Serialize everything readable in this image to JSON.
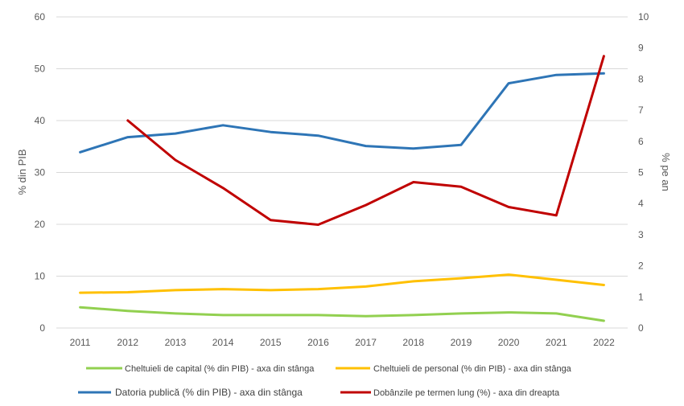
{
  "chart_data": {
    "type": "line",
    "title": "",
    "categories": [
      "2011",
      "2012",
      "2013",
      "2014",
      "2015",
      "2016",
      "2017",
      "2018",
      "2019",
      "2020",
      "2021",
      "2022"
    ],
    "y_left": {
      "label": "% din PIB",
      "min": 0,
      "max": 60,
      "ticks": [
        "0",
        "10",
        "20",
        "30",
        "40",
        "50",
        "60"
      ]
    },
    "y_right": {
      "label": "% pe an",
      "min": 0,
      "max": 10,
      "ticks": [
        "0",
        "1",
        "2",
        "3",
        "4",
        "5",
        "6",
        "7",
        "8",
        "9",
        "10"
      ]
    },
    "grid": "horizontal",
    "legend_position": "bottom",
    "series": [
      {
        "name": "Cheltuieli de capital (% din PIB) - axa din stânga",
        "axis": "left",
        "color": "#92D050",
        "values": [
          4.0,
          3.3,
          2.8,
          2.5,
          2.5,
          2.5,
          2.3,
          2.5,
          2.8,
          3.0,
          2.8,
          1.4
        ]
      },
      {
        "name": "Cheltuieli de personal (% din PIB) - axa din stânga",
        "axis": "left",
        "color": "#FFC000",
        "values": [
          6.8,
          6.9,
          7.3,
          7.5,
          7.3,
          7.5,
          8.0,
          9.0,
          9.6,
          10.3,
          9.3,
          8.3
        ]
      },
      {
        "name": "Datoria publică (% din PIB) - axa din stânga",
        "axis": "left",
        "color": "#2E75B6",
        "values": [
          33.9,
          36.8,
          37.5,
          39.1,
          37.8,
          37.1,
          35.1,
          34.6,
          35.3,
          47.2,
          48.8,
          49.1
        ]
      },
      {
        "name": "Dobânzile pe termen lung (%) - axa din dreapta",
        "axis": "right",
        "color": "#C00000",
        "values": [
          null,
          6.67,
          5.4,
          4.5,
          3.47,
          3.32,
          3.95,
          4.69,
          4.54,
          3.89,
          3.62,
          8.74
        ]
      }
    ]
  }
}
